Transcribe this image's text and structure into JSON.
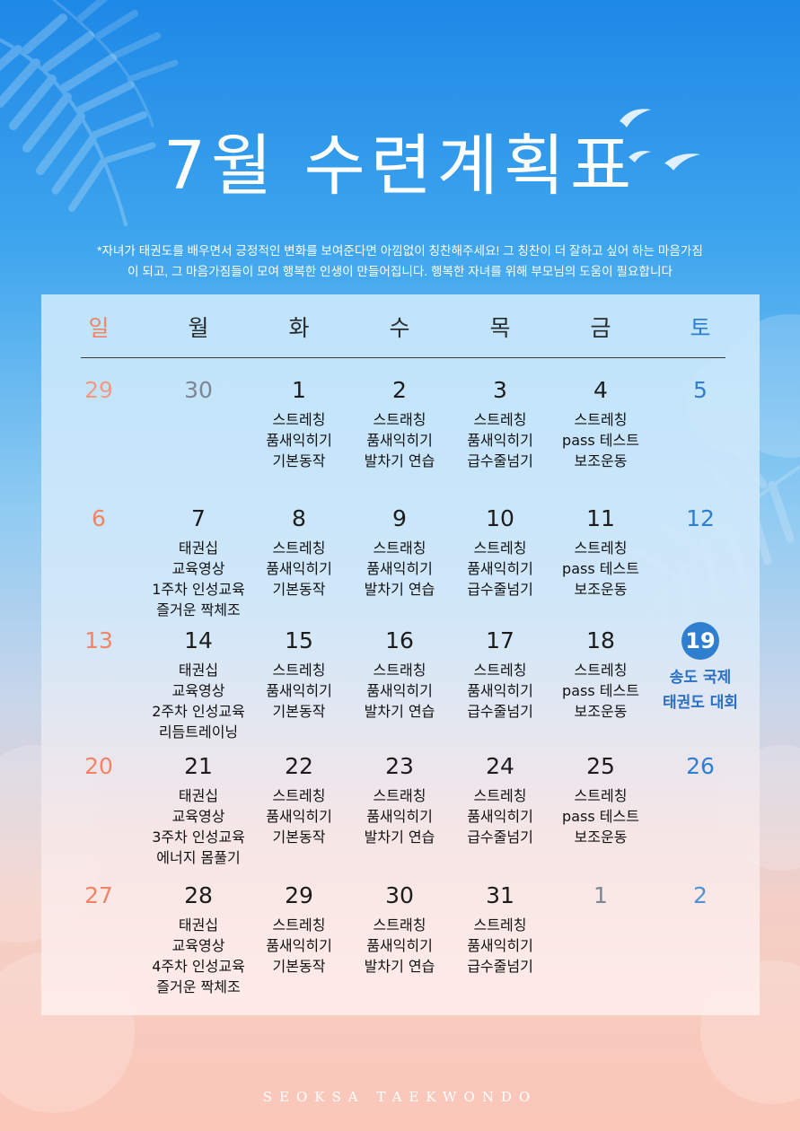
{
  "title": "7월 수련계획표",
  "notice": {
    "line1": "*자녀가 태권도를 배우면서 긍정적인 변화를 보여준다면 아낌없이 칭찬해주세요! 그 칭찬이 더 잘하고 싶어 하는 마음가짐",
    "line2": "이 되고, 그 마음가짐들이 모여 행복한 인생이 만들어집니다. 행복한 자녀를 위해 부모님의 도움이 필요합니다"
  },
  "weekdays": [
    "일",
    "월",
    "화",
    "수",
    "목",
    "금",
    "토"
  ],
  "weeks": [
    [
      {
        "day": "29",
        "other": true,
        "acts": []
      },
      {
        "day": "30",
        "other": true,
        "acts": []
      },
      {
        "day": "1",
        "acts": [
          "스트레칭",
          "품새익히기",
          "기본동작"
        ]
      },
      {
        "day": "2",
        "acts": [
          "스트래칭",
          "품새익히기",
          "발차기 연습"
        ]
      },
      {
        "day": "3",
        "acts": [
          "스트레칭",
          "품새익히기",
          "급수줄넘기"
        ]
      },
      {
        "day": "4",
        "acts": [
          "스트레칭",
          "pass 테스트",
          "보조운동"
        ]
      },
      {
        "day": "5",
        "acts": []
      }
    ],
    [
      {
        "day": "6",
        "acts": []
      },
      {
        "day": "7",
        "acts": [
          "태권십",
          "교육영상",
          "1주차 인성교육",
          "즐거운 짝체조"
        ]
      },
      {
        "day": "8",
        "acts": [
          "스트레칭",
          "품새익히기",
          "기본동작"
        ]
      },
      {
        "day": "9",
        "acts": [
          "스트래칭",
          "품새익히기",
          "발차기 연습"
        ]
      },
      {
        "day": "10",
        "acts": [
          "스트레칭",
          "품새익히기",
          "급수줄넘기"
        ]
      },
      {
        "day": "11",
        "acts": [
          "스트레칭",
          "pass 테스트",
          "보조운동"
        ]
      },
      {
        "day": "12",
        "acts": []
      }
    ],
    [
      {
        "day": "13",
        "acts": []
      },
      {
        "day": "14",
        "acts": [
          "태권십",
          "교육영상",
          "2주차 인성교육",
          "리듬트레이닝"
        ]
      },
      {
        "day": "15",
        "acts": [
          "스트레칭",
          "품새익히기",
          "기본동작"
        ]
      },
      {
        "day": "16",
        "acts": [
          "스트래칭",
          "품새익히기",
          "발차기 연습"
        ]
      },
      {
        "day": "17",
        "acts": [
          "스트레칭",
          "품새익히기",
          "급수줄넘기"
        ]
      },
      {
        "day": "18",
        "acts": [
          "스트레칭",
          "pass 테스트",
          "보조운동"
        ]
      },
      {
        "day": "19",
        "event": true,
        "acts": [
          "송도 국제",
          "태권도 대회"
        ]
      }
    ],
    [
      {
        "day": "20",
        "acts": []
      },
      {
        "day": "21",
        "acts": [
          "태권십",
          "교육영상",
          "3주차 인성교육",
          "에너지 몸풀기"
        ]
      },
      {
        "day": "22",
        "acts": [
          "스트레칭",
          "품새익히기",
          "기본동작"
        ]
      },
      {
        "day": "23",
        "acts": [
          "스트래칭",
          "품새익히기",
          "발차기 연습"
        ]
      },
      {
        "day": "24",
        "acts": [
          "스트레칭",
          "품새익히기",
          "급수줄넘기"
        ]
      },
      {
        "day": "25",
        "acts": [
          "스트레칭",
          "pass 테스트",
          "보조운동"
        ]
      },
      {
        "day": "26",
        "acts": []
      }
    ],
    [
      {
        "day": "27",
        "acts": []
      },
      {
        "day": "28",
        "acts": [
          "태권십",
          "교육영상",
          "4주차 인성교육",
          "즐거운 짝체조"
        ]
      },
      {
        "day": "29",
        "acts": [
          "스트레칭",
          "품새익히기",
          "기본동작"
        ]
      },
      {
        "day": "30",
        "acts": [
          "스트래칭",
          "품새익히기",
          "발차기 연습"
        ]
      },
      {
        "day": "31",
        "acts": [
          "스트레칭",
          "품새익히기",
          "급수줄넘기"
        ]
      },
      {
        "day": "1",
        "other": true,
        "acts": []
      },
      {
        "day": "2",
        "other": true,
        "acts": []
      }
    ]
  ],
  "footer": "SEOKSA TAEKWONDO",
  "colors": {
    "sunday": "#f08467",
    "saturday": "#2f7fd0",
    "event": "#2f7fd0",
    "title": "#ffffff"
  },
  "icons": [
    "palm-leaf-icon",
    "seagull-icon",
    "cloud-icon"
  ]
}
